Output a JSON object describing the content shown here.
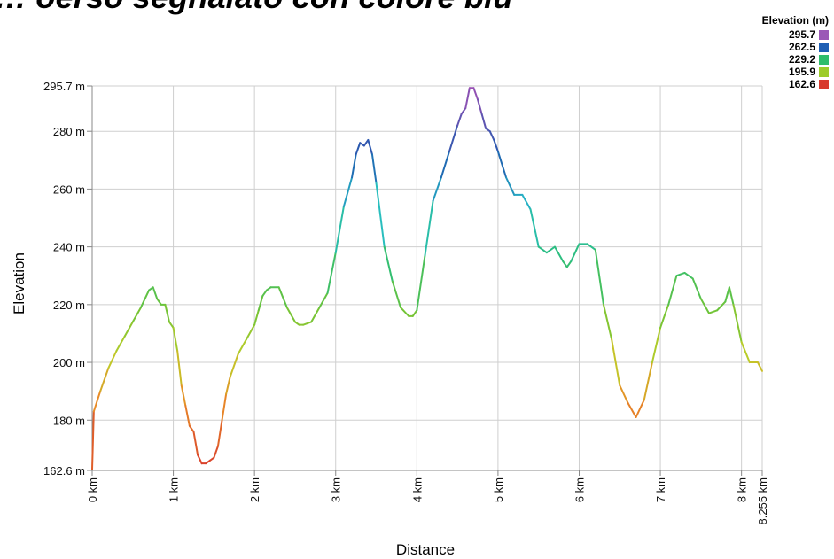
{
  "page": {
    "title": "… oerso segnalato con colore blu"
  },
  "legend": {
    "title": "Elevation (m)",
    "items": [
      {
        "label": "295.7",
        "color": "#9b59b6"
      },
      {
        "label": "262.5",
        "color": "#1f5fb4"
      },
      {
        "label": "229.2",
        "color": "#2ebd6b"
      },
      {
        "label": "195.9",
        "color": "#9ccc2a"
      },
      {
        "label": "162.6",
        "color": "#d83a2c"
      }
    ]
  },
  "chart_data": {
    "type": "line",
    "title": "",
    "xlabel": "Distance",
    "ylabel": "Elevation",
    "xlim": [
      0,
      8.255
    ],
    "ylim": [
      162.6,
      295.7
    ],
    "grid": true,
    "legend_position": "top-right",
    "color_by": "elevation",
    "x_ticks": [
      {
        "value": 0,
        "label": "0 km"
      },
      {
        "value": 1,
        "label": "1 km"
      },
      {
        "value": 2,
        "label": "2 km"
      },
      {
        "value": 3,
        "label": "3 km"
      },
      {
        "value": 4,
        "label": "4 km"
      },
      {
        "value": 5,
        "label": "5 km"
      },
      {
        "value": 6,
        "label": "6 km"
      },
      {
        "value": 7,
        "label": "7 km"
      },
      {
        "value": 8,
        "label": "8 km"
      },
      {
        "value": 8.255,
        "label": "8.255 km"
      }
    ],
    "y_ticks": [
      {
        "value": 162.6,
        "label": "162.6 m"
      },
      {
        "value": 180,
        "label": "180 m"
      },
      {
        "value": 200,
        "label": "200 m"
      },
      {
        "value": 220,
        "label": "220 m"
      },
      {
        "value": 240,
        "label": "240 m"
      },
      {
        "value": 260,
        "label": "260 m"
      },
      {
        "value": 280,
        "label": "280 m"
      },
      {
        "value": 295.7,
        "label": "295.7 m"
      }
    ],
    "series": [
      {
        "x": [
          0,
          0.02,
          0.1,
          0.2,
          0.3,
          0.4,
          0.5,
          0.6,
          0.7,
          0.75,
          0.8,
          0.85,
          0.9,
          0.95,
          1.0,
          1.05,
          1.1,
          1.15,
          1.2,
          1.25,
          1.3,
          1.35,
          1.4,
          1.45,
          1.5,
          1.55,
          1.6,
          1.65,
          1.7,
          1.8,
          1.9,
          2.0,
          2.05,
          2.1,
          2.15,
          2.2,
          2.3,
          2.4,
          2.5,
          2.55,
          2.6,
          2.7,
          2.8,
          2.9,
          3.0,
          3.1,
          3.2,
          3.25,
          3.3,
          3.35,
          3.4,
          3.45,
          3.5,
          3.6,
          3.7,
          3.8,
          3.9,
          3.95,
          4.0,
          4.1,
          4.2,
          4.3,
          4.4,
          4.5,
          4.55,
          4.6,
          4.65,
          4.7,
          4.75,
          4.8,
          4.85,
          4.9,
          4.95,
          5.0,
          5.1,
          5.2,
          5.3,
          5.4,
          5.5,
          5.6,
          5.7,
          5.8,
          5.85,
          5.9,
          6.0,
          6.1,
          6.2,
          6.3,
          6.4,
          6.5,
          6.6,
          6.7,
          6.8,
          6.9,
          7.0,
          7.1,
          7.2,
          7.3,
          7.4,
          7.5,
          7.6,
          7.7,
          7.8,
          7.85,
          7.9,
          8.0,
          8.1,
          8.2,
          8.255
        ],
        "y": [
          163,
          183,
          190,
          198,
          204,
          209,
          214,
          219,
          225,
          226,
          222,
          220,
          220,
          214,
          212,
          204,
          192,
          185,
          178,
          176,
          168,
          165,
          165,
          166,
          167,
          171,
          180,
          189,
          195,
          203,
          208,
          213,
          218,
          223,
          225,
          226,
          226,
          219,
          214,
          213,
          213,
          214,
          219,
          224,
          238,
          254,
          264,
          272,
          276,
          275,
          277,
          272,
          262,
          240,
          228,
          219,
          216,
          216,
          218,
          237,
          256,
          264,
          273,
          282,
          286,
          288,
          295,
          295,
          291,
          286,
          281,
          280,
          277,
          273,
          264,
          258,
          258,
          253,
          240,
          238,
          240,
          235,
          233,
          235,
          241,
          241,
          239,
          220,
          208,
          192,
          186,
          181,
          187,
          200,
          212,
          220,
          230,
          231,
          229,
          222,
          217,
          218,
          221,
          226,
          220,
          207,
          200,
          200,
          197
        ]
      }
    ]
  }
}
